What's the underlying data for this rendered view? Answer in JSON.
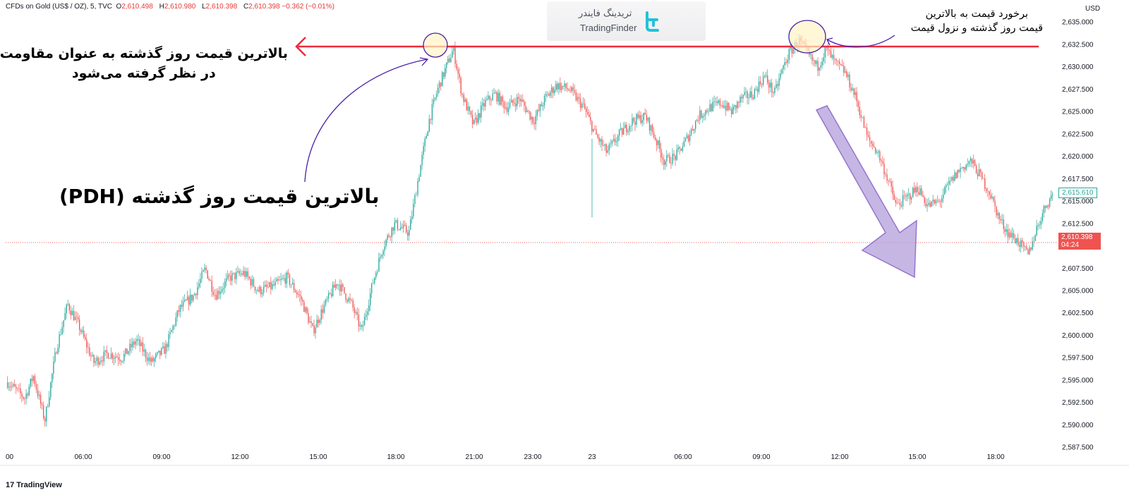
{
  "header": {
    "symbol": "CFDs on Gold (US$ / OZ), 5, TVC",
    "o_label": "O",
    "o_value": "2,610.498",
    "h_label": "H",
    "h_value": "2,610.980",
    "l_label": "L",
    "l_value": "2,610.398",
    "c_label": "C",
    "c_value": "2,610.398 −0.362 (−0.01%)"
  },
  "logo": {
    "fa": "تریدینگ فایندر",
    "en": "TradingFinder"
  },
  "annotations": {
    "left_line1": "بالاترین قیمت روز گذشته به عنوان مقاومت",
    "left_line2": "در نظر گرفته می‌شود",
    "pdh": "بالاترین قیمت روز گذشته (PDH)",
    "right_line1": "برخورد قیمت به بالاترین",
    "right_line2": "قیمت روز گذشته و نزول قیمت"
  },
  "currency": "USD",
  "footer": "TradingView",
  "tags": {
    "last_close": "2,615.610",
    "current": "2,610.398",
    "countdown": "04:24"
  },
  "colors": {
    "up": "#26a69a",
    "down": "#ef5350",
    "resistance": "#ef2b3c",
    "arrow": "#b39ddb",
    "marker": "#4b1ea8"
  },
  "chart_data": {
    "type": "candlestick",
    "ylim": [
      2585.5,
      2637.5
    ],
    "y_ticks": [
      2587.5,
      2590,
      2592.5,
      2595,
      2597.5,
      2600,
      2602.5,
      2605,
      2607.5,
      2610,
      2612.5,
      2615,
      2617.5,
      2620,
      2622.5,
      2625,
      2627.5,
      2630,
      2632.5,
      2635
    ],
    "y_tick_labels": [
      "2,587.500",
      "2,590.000",
      "2,592.500",
      "2,595.000",
      "2,597.500",
      "2,600.000",
      "2,602.500",
      "2,605.000",
      "2,607.500",
      "2,610.000",
      "2,612.500",
      "2,615.000",
      "2,617.500",
      "2,620.000",
      "2,622.500",
      "2,625.000",
      "2,627.500",
      "2,630.000",
      "2,632.500",
      "2,635.000"
    ],
    "x_ticks": [
      "00",
      "06:00",
      "09:00",
      "12:00",
      "15:00",
      "18:00",
      "21:00",
      "23:00",
      "23",
      "06:00",
      "09:00",
      "12:00",
      "15:00",
      "18:00"
    ],
    "resistance_level": 2632.3,
    "current_price": 2610.398,
    "price_path": [
      [
        0,
        2594.8
      ],
      [
        12,
        2593.0
      ],
      [
        18,
        2595.5
      ],
      [
        26,
        2590.5
      ],
      [
        34,
        2598.5
      ],
      [
        42,
        2603.5
      ],
      [
        50,
        2601.0
      ],
      [
        60,
        2597.0
      ],
      [
        70,
        2598.0
      ],
      [
        80,
        2597.5
      ],
      [
        90,
        2599.5
      ],
      [
        100,
        2597.0
      ],
      [
        110,
        2598.5
      ],
      [
        120,
        2603.0
      ],
      [
        130,
        2604.5
      ],
      [
        138,
        2607.5
      ],
      [
        145,
        2604.5
      ],
      [
        155,
        2606.5
      ],
      [
        165,
        2607.0
      ],
      [
        175,
        2605.0
      ],
      [
        185,
        2605.5
      ],
      [
        195,
        2606.5
      ],
      [
        205,
        2604.0
      ],
      [
        213,
        2600.5
      ],
      [
        220,
        2603.0
      ],
      [
        230,
        2606.0
      ],
      [
        240,
        2603.5
      ],
      [
        247,
        2600.5
      ],
      [
        255,
        2606.0
      ],
      [
        262,
        2610.0
      ],
      [
        270,
        2612.5
      ],
      [
        280,
        2611.5
      ],
      [
        287,
        2618.0
      ],
      [
        294,
        2624.0
      ],
      [
        300,
        2627.5
      ],
      [
        306,
        2630.0
      ],
      [
        311,
        2632.0
      ],
      [
        317,
        2627.0
      ],
      [
        325,
        2623.5
      ],
      [
        333,
        2626.0
      ],
      [
        340,
        2627.0
      ],
      [
        348,
        2625.5
      ],
      [
        357,
        2626.5
      ],
      [
        367,
        2624.0
      ],
      [
        375,
        2626.5
      ],
      [
        383,
        2628.0
      ],
      [
        392,
        2627.5
      ],
      [
        402,
        2625.5
      ],
      [
        410,
        2622.5
      ],
      [
        418,
        2620.5
      ],
      [
        427,
        2622.5
      ],
      [
        436,
        2624.0
      ],
      [
        445,
        2624.5
      ],
      [
        452,
        2622.0
      ],
      [
        458,
        2619.5
      ],
      [
        466,
        2620.0
      ],
      [
        474,
        2622.0
      ],
      [
        482,
        2624.5
      ],
      [
        490,
        2625.5
      ],
      [
        498,
        2626.0
      ],
      [
        505,
        2625.0
      ],
      [
        512,
        2626.5
      ],
      [
        520,
        2627.0
      ],
      [
        528,
        2629.0
      ],
      [
        535,
        2627.0
      ],
      [
        540,
        2629.5
      ],
      [
        545,
        2631.5
      ],
      [
        552,
        2633.0
      ],
      [
        560,
        2631.0
      ],
      [
        565,
        2630.0
      ],
      [
        571,
        2632.0
      ],
      [
        577,
        2630.5
      ],
      [
        584,
        2629.5
      ],
      [
        592,
        2626.5
      ],
      [
        600,
        2622.0
      ],
      [
        607,
        2620.5
      ],
      [
        614,
        2617.5
      ],
      [
        620,
        2614.5
      ],
      [
        628,
        2615.5
      ],
      [
        635,
        2616.5
      ],
      [
        642,
        2614.5
      ],
      [
        650,
        2615.0
      ],
      [
        657,
        2617.0
      ],
      [
        664,
        2618.5
      ],
      [
        672,
        2619.5
      ],
      [
        678,
        2618.0
      ],
      [
        685,
        2616.0
      ],
      [
        692,
        2613.0
      ],
      [
        698,
        2611.5
      ],
      [
        705,
        2610.5
      ],
      [
        712,
        2609.0
      ],
      [
        718,
        2612.0
      ],
      [
        724,
        2614.5
      ],
      [
        730,
        2616.0
      ]
    ]
  }
}
